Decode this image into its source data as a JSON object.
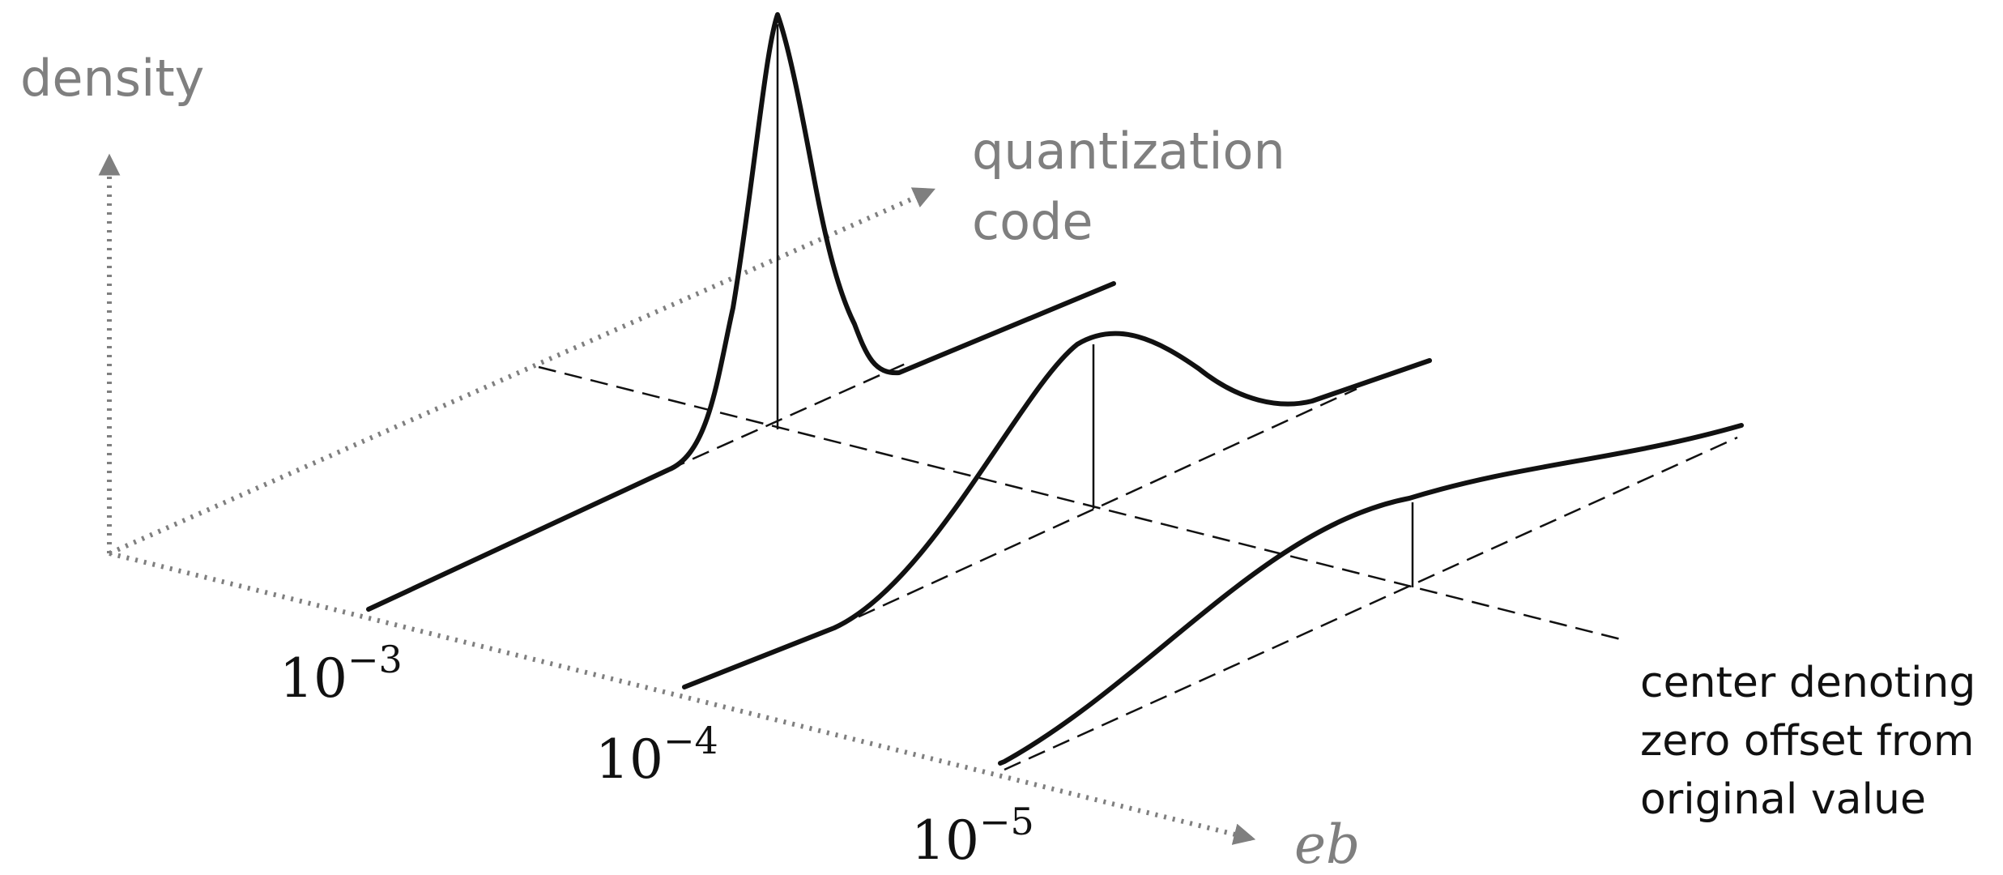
{
  "axes": {
    "vertical_label": "density",
    "depth_label_line1": "quantization",
    "depth_label_line2": "code",
    "horizontal_label": "eb",
    "axis_color": "#7f7f7f"
  },
  "ticks": [
    {
      "base": "10",
      "exponent": "−3"
    },
    {
      "base": "10",
      "exponent": "−4"
    },
    {
      "base": "10",
      "exponent": "−5"
    }
  ],
  "annotation": {
    "line1": "center denoting",
    "line2": "zero offset from",
    "line3": "original value"
  },
  "curve_color": "#111111"
}
